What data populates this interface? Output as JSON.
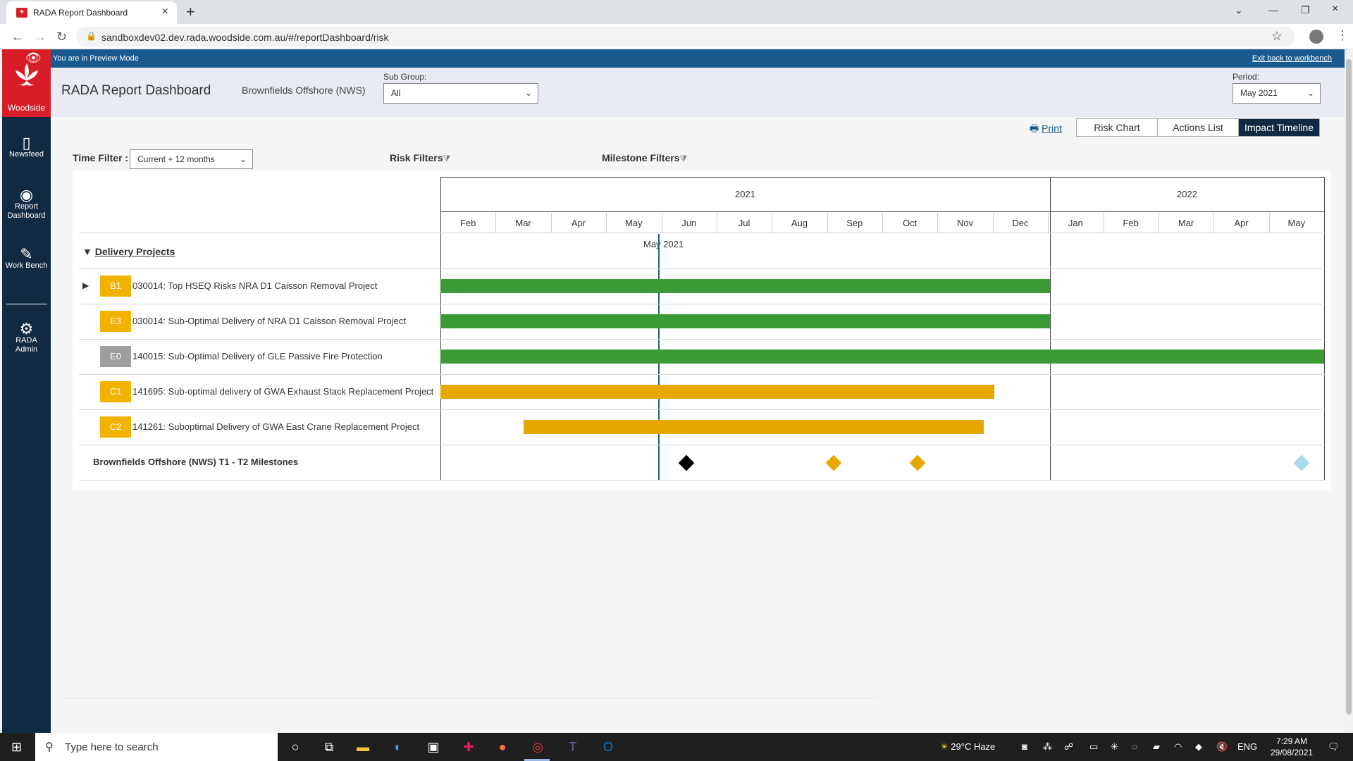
{
  "browser": {
    "tab_title": "RADA Report Dashboard",
    "url": "sandboxdev02.dev.rada.woodside.com.au/#/reportDashboard/risk"
  },
  "nav": {
    "logo_text": "Woodside",
    "items": [
      {
        "label": "Newsfeed",
        "icon": "newsfeed-icon"
      },
      {
        "label": "Report Dashboard",
        "icon": "gauge-icon"
      },
      {
        "label": "Work Bench",
        "icon": "edit-icon"
      },
      {
        "label": "RADA Admin",
        "icon": "gears-icon"
      }
    ]
  },
  "preview": {
    "text": "You are in Preview Mode",
    "exit_label": "Exit back to workbench"
  },
  "header": {
    "title": "RADA Report Dashboard",
    "group": "Brownfields Offshore (NWS)",
    "sub_group_label": "Sub Group:",
    "sub_group_value": "All",
    "period_label": "Period:",
    "period_value": "May 2021"
  },
  "actions": {
    "print_label": "Print",
    "tabs": [
      "Risk Chart",
      "Actions List",
      "Impact Timeline"
    ],
    "active_tab": "Impact Timeline"
  },
  "filters": {
    "time_label": "Time Filter :",
    "time_value": "Current + 12 months",
    "risk_label": "Risk Filters",
    "milestone_label": "Milestone Filters"
  },
  "timeline": {
    "years": [
      "2021",
      "2022"
    ],
    "months": [
      "Feb",
      "Mar",
      "Apr",
      "May",
      "Jun",
      "Jul",
      "Aug",
      "Sep",
      "Oct",
      "Nov",
      "Dec",
      "Jan",
      "Feb",
      "Mar",
      "Apr",
      "May"
    ],
    "today_label": "May 2021",
    "group_title": "Delivery Projects",
    "rows": [
      {
        "badge": "B1",
        "label": "030014: Top HSEQ Risks NRA D1 Caisson Removal Project",
        "badge_color": "#f2b200",
        "bar_color": "#3a9a35",
        "expandable": true
      },
      {
        "badge": "E3",
        "label": "030014: Sub-Optimal Delivery of NRA D1 Caisson Removal Project",
        "badge_color": "#f2b200",
        "bar_color": "#3a9a35",
        "expandable": false
      },
      {
        "badge": "E0",
        "label": "140015: Sub-Optimal Delivery of GLE Passive Fire Protection",
        "badge_color": "#9e9e9e",
        "bar_color": "#3a9a35",
        "expandable": false
      },
      {
        "badge": "C1",
        "label": "141695: Sub-optimal delivery of GWA Exhaust Stack Replacement Project",
        "badge_color": "#f2b200",
        "bar_color": "#e6a800",
        "expandable": false
      },
      {
        "badge": "C2",
        "label": "141261: Suboptimal Delivery of GWA East Crane Replacement Project",
        "badge_color": "#f2b200",
        "bar_color": "#e6a800",
        "expandable": false
      }
    ],
    "milestone_label": "Brownfields Offshore (NWS) T1 - T2 Milestones",
    "milestone_colors": [
      "#000000",
      "#e6a800",
      "#e6a800",
      "#a8d8ea"
    ]
  },
  "taskbar": {
    "search_placeholder": "Type here to search",
    "weather": "29°C  Haze",
    "lang": "ENG",
    "time": "7:29 AM",
    "date": "29/08/2021"
  }
}
